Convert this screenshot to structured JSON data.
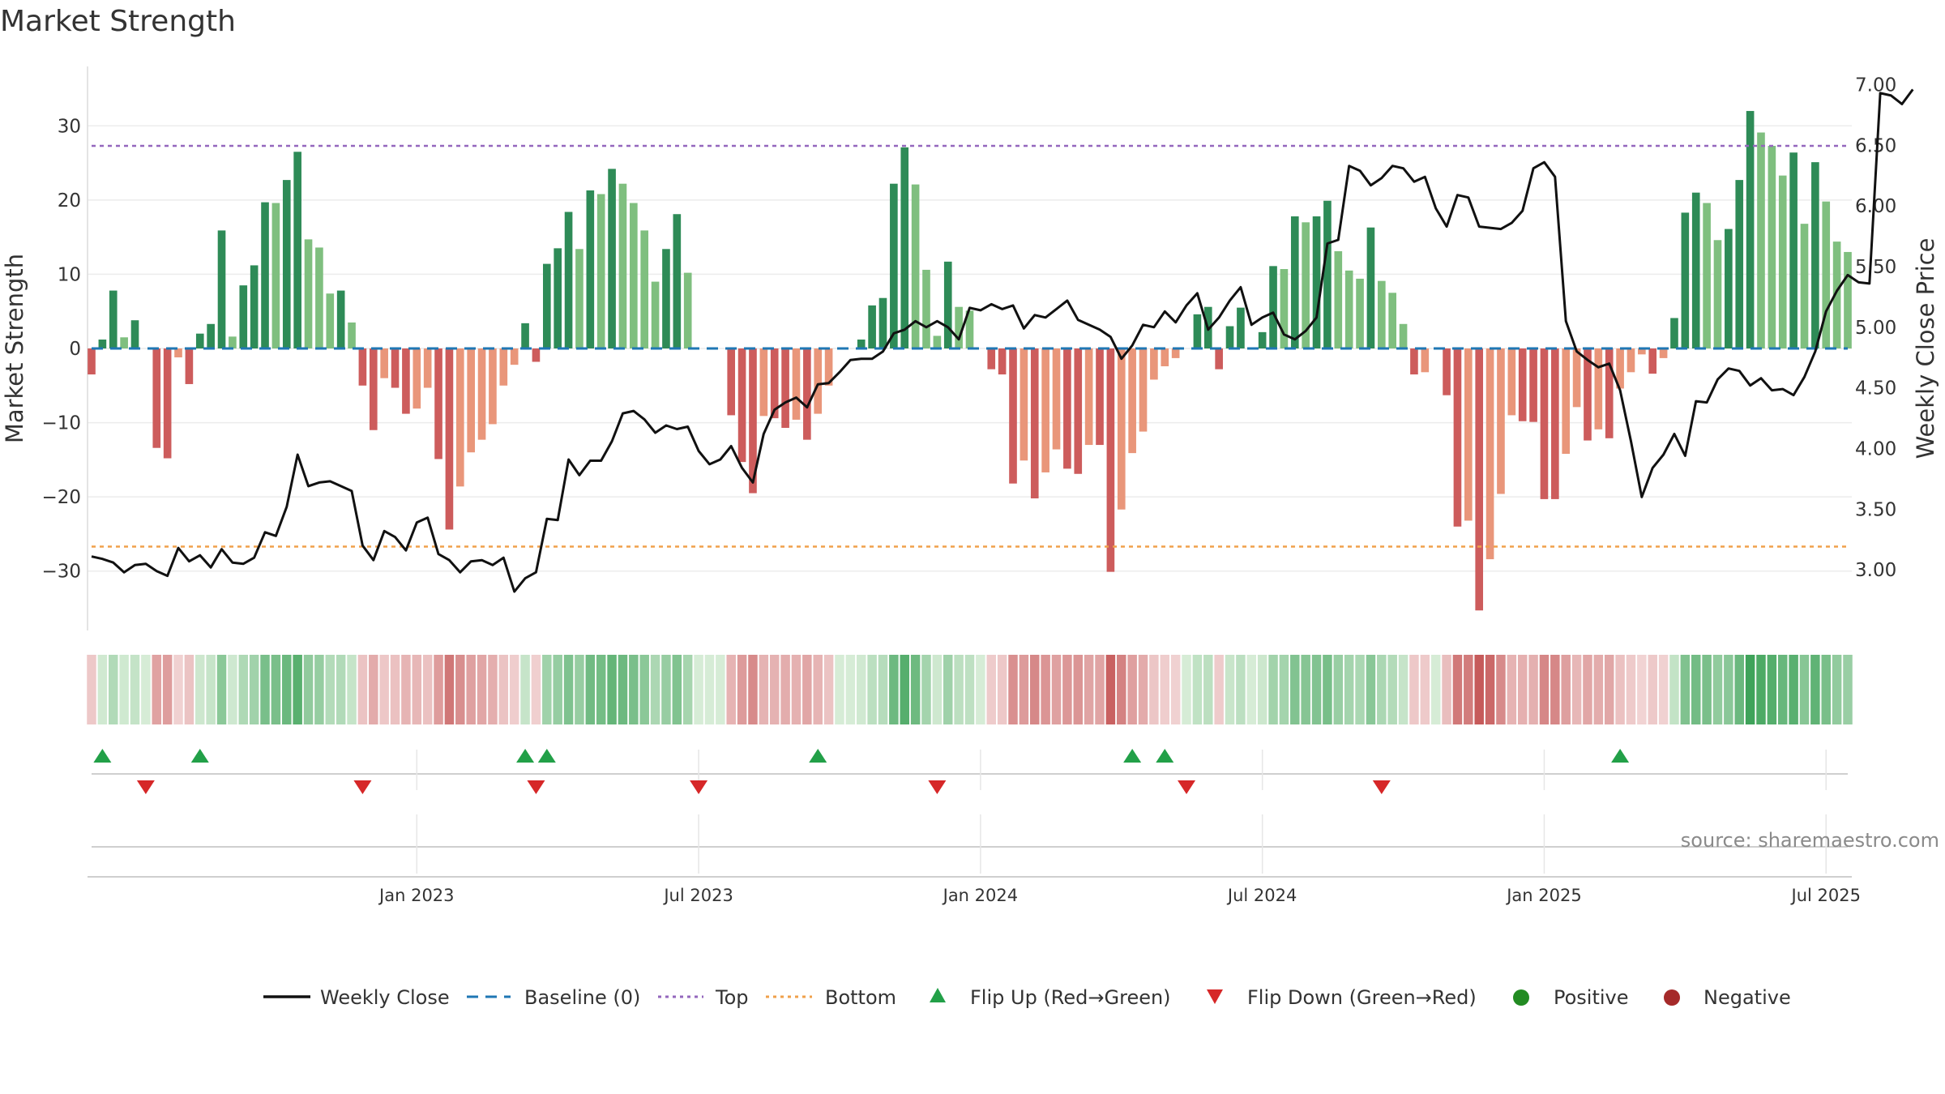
{
  "chart_data": {
    "type": "bar",
    "title": "Market Strength",
    "ylabel": "Market Strength",
    "y2label": "Weekly Close Price",
    "ylim": [
      -38,
      38
    ],
    "y2lim": [
      2.5,
      7.15
    ],
    "yticks": [
      30,
      20,
      10,
      0,
      -10,
      -20,
      -30
    ],
    "ytick_labels": [
      "30",
      "20",
      "10",
      "0",
      "−10",
      "−20",
      "−30"
    ],
    "y2ticks": [
      7.0,
      6.5,
      6.0,
      5.5,
      5.0,
      4.5,
      4.0,
      3.5,
      3.0
    ],
    "y2tick_labels": [
      "7.00",
      "6.50",
      "6.00",
      "5.50",
      "5.00",
      "4.50",
      "4.00",
      "3.50",
      "3.00"
    ],
    "x_labels": [
      "Jan 2023",
      "Jul 2023",
      "Jan 2024",
      "Jul 2024",
      "Jan 2025",
      "Jul 2025"
    ],
    "x_label_week_index": [
      30,
      56,
      82,
      108,
      134,
      160
    ],
    "top_line": 27.3,
    "bottom_line": -26.7,
    "baseline": 0,
    "strength": [
      -3.5,
      1.2,
      7.8,
      1.5,
      3.8,
      0,
      -13.4,
      -14.8,
      -1.2,
      -4.8,
      2,
      3.3,
      15.9,
      1.6,
      8.5,
      11.2,
      19.7,
      19.6,
      22.7,
      26.5,
      14.7,
      13.6,
      7.4,
      7.8,
      3.5,
      -5,
      -11,
      -4,
      -5.3,
      -8.8,
      -8.1,
      -5.3,
      -14.9,
      -24.4,
      -18.6,
      -14,
      -12.3,
      -10.2,
      -5,
      -2.2,
      3.4,
      -1.8,
      11.4,
      13.5,
      18.4,
      13.4,
      21.3,
      20.8,
      24.2,
      22.2,
      19.6,
      15.9,
      9,
      13.4,
      18.1,
      10.2,
      0,
      0,
      0,
      -9,
      -15.3,
      -19.5,
      -9.1,
      -9.4,
      -10.7,
      -9.6,
      -12.3,
      -8.8,
      -5,
      0,
      0,
      1.2,
      5.8,
      6.8,
      22.2,
      27.1,
      22.1,
      10.6,
      1.7,
      11.7,
      5.6,
      5.1,
      0,
      -2.8,
      -3.5,
      -18.2,
      -15.1,
      -20.2,
      -16.7,
      -13.6,
      -16.2,
      -16.9,
      -13,
      -13,
      -30.1,
      -21.7,
      -14.1,
      -11.2,
      -4.2,
      -2.4,
      -1.3,
      0,
      4.6,
      5.6,
      -2.8,
      3,
      5.5,
      0,
      2.2,
      11.1,
      10.7,
      17.8,
      17,
      17.8,
      19.9,
      13.1,
      10.5,
      9.4,
      16.3,
      9.1,
      7.5,
      3.3,
      -3.5,
      -3.2,
      0,
      -6.3,
      -24,
      -23.2,
      -35.3,
      -28.4,
      -19.6,
      -9,
      -9.8,
      -9.9,
      -20.3,
      -20.3,
      -14.2,
      -7.9,
      -12.4,
      -10.9,
      -12.1,
      -5.4,
      -3.2,
      -0.8,
      -3.4,
      -1.3,
      4.1,
      18.3,
      21,
      19.6,
      14.6,
      16.1,
      22.7,
      32,
      29.1,
      27.3,
      23.3,
      26.4,
      16.8,
      25.1,
      19.8,
      14.4,
      13
    ],
    "close": [
      3.11,
      3.09,
      3.06,
      2.98,
      3.04,
      3.05,
      2.99,
      2.95,
      3.18,
      3.07,
      3.12,
      3.02,
      3.17,
      3.06,
      3.05,
      3.1,
      3.31,
      3.28,
      3.52,
      3.95,
      3.69,
      3.72,
      3.73,
      3.69,
      3.65,
      3.2,
      3.08,
      3.32,
      3.27,
      3.16,
      3.39,
      3.43,
      3.13,
      3.08,
      2.98,
      3.07,
      3.08,
      3.04,
      3.1,
      2.82,
      2.93,
      2.98,
      3.42,
      3.41,
      3.91,
      3.78,
      3.9,
      3.9,
      4.06,
      4.29,
      4.31,
      4.24,
      4.13,
      4.19,
      4.16,
      4.18,
      3.98,
      3.87,
      3.91,
      4.02,
      3.84,
      3.72,
      4.12,
      4.32,
      4.38,
      4.42,
      4.34,
      4.53,
      4.54,
      4.63,
      4.73,
      4.74,
      4.74,
      4.8,
      4.95,
      4.98,
      5.05,
      5.0,
      5.05,
      5.0,
      4.9,
      5.16,
      5.14,
      5.19,
      5.15,
      5.18,
      4.99,
      5.1,
      5.08,
      5.15,
      5.22,
      5.06,
      5.02,
      4.98,
      4.92,
      4.74,
      4.85,
      5.02,
      5.0,
      5.13,
      5.04,
      5.18,
      5.28,
      4.98,
      5.08,
      5.22,
      5.33,
      5.02,
      5.08,
      5.12,
      4.94,
      4.9,
      4.97,
      5.08,
      5.69,
      5.72,
      6.33,
      6.29,
      6.17,
      6.23,
      6.33,
      6.31,
      6.2,
      6.24,
      5.98,
      5.83,
      6.09,
      6.07,
      5.83,
      5.82,
      5.81,
      5.86,
      5.96,
      6.31,
      6.36,
      6.24,
      5.05,
      4.8,
      4.73,
      4.67,
      4.7,
      4.48,
      4.06,
      3.6,
      3.84,
      3.95,
      4.12,
      3.94,
      4.39,
      4.38,
      4.57,
      4.66,
      4.64,
      4.52,
      4.58,
      4.48,
      4.49,
      4.44,
      4.59,
      4.8,
      5.13,
      5.3,
      5.43,
      5.37,
      5.36,
      6.93,
      6.91,
      6.84,
      6.96
    ]
  },
  "flips": {
    "up_weeks": [
      1,
      10,
      40,
      42,
      67,
      96,
      99,
      141
    ],
    "down_weeks": [
      5,
      25,
      41,
      56,
      78,
      101,
      119
    ]
  },
  "strip": {
    "colors": [
      "Positive",
      "Negative"
    ]
  },
  "legend": {
    "weekly_close": "Weekly Close",
    "baseline": "Baseline (0)",
    "top": "Top",
    "bottom": "Bottom",
    "flip_up": "Flip Up (Red→Green)",
    "flip_down": "Flip Down (Green→Red)",
    "positive": "Positive",
    "negative": "Negative"
  },
  "source": "source: sharemaestro.com",
  "colors": {
    "green_dark": "#2e8b57",
    "green_light": "#7fbf7f",
    "red_dark": "#cd5c5c",
    "red_light": "#e9967a",
    "line": "#111111",
    "baseline": "#1f77b4",
    "top": "#9467bd",
    "bottom": "#f0a04b",
    "flip_up": "#22a048",
    "flip_down": "#d62728",
    "positive": "#228b22",
    "negative": "#a52a2a"
  }
}
